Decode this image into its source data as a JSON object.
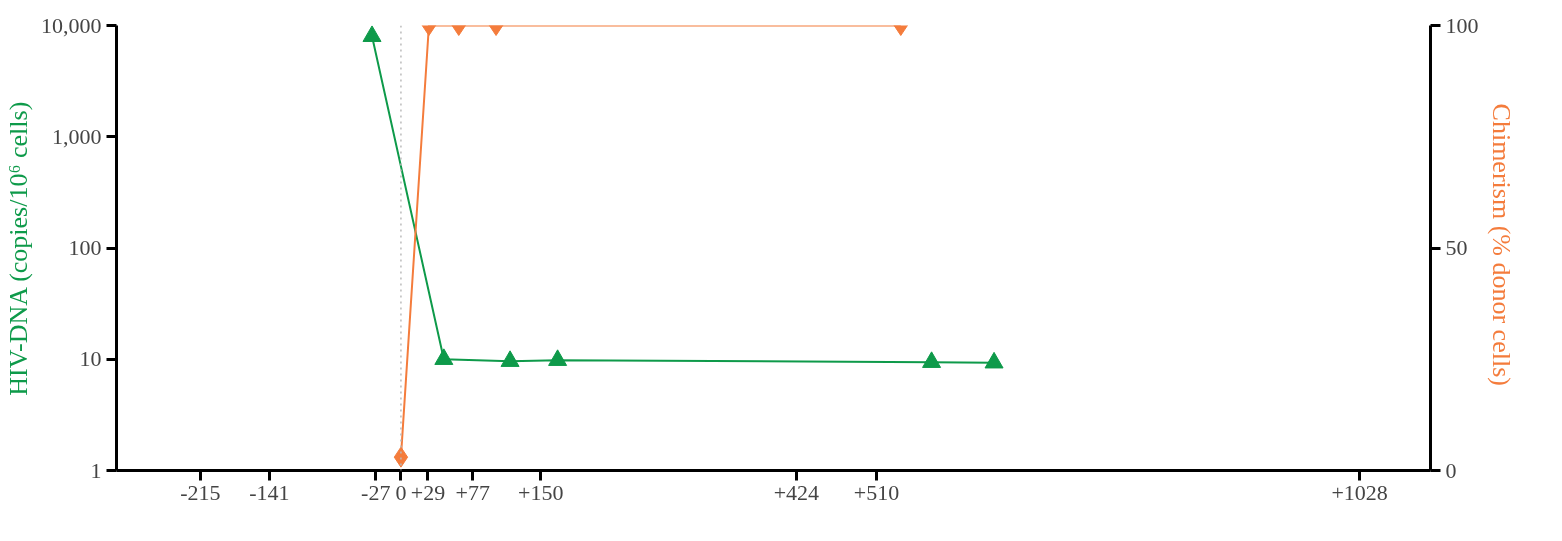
{
  "chart_data": {
    "type": "line",
    "ylabel": "HIV-DNA (copies/10⁶ cells)",
    "y2label": "Chimerism  (% donor cells)",
    "xlim": [
      -305,
      1104
    ],
    "xticks": [
      -215,
      -141,
      -27,
      0,
      {
        "value": 29,
        "label": "+29"
      },
      {
        "value": 77,
        "label": "+77"
      },
      {
        "value": 150,
        "label": "+150"
      },
      {
        "value": 424,
        "label": "+424"
      },
      {
        "value": 510,
        "label": "+510"
      },
      {
        "value": 1028,
        "label": "+1028"
      }
    ],
    "log": "y",
    "ylim": [
      1,
      10000
    ],
    "yticks": [
      {
        "value": 1,
        "label": "1"
      },
      {
        "value": 10,
        "label": "10"
      },
      {
        "value": 100,
        "label": "100"
      },
      {
        "value": 1000,
        "label": "1,000"
      },
      {
        "value": 10000,
        "label": "10,000"
      }
    ],
    "y2lim": [
      0,
      100
    ],
    "y2ticks": [
      0,
      50,
      100
    ],
    "grid": false,
    "ref_lines": [
      {
        "axis": "x",
        "value": 0,
        "label": null,
        "color": "#bbbbbb",
        "line_style": "dotted"
      }
    ],
    "series": [
      {
        "color": "#0e9a4a",
        "marker": "triangle",
        "x": [
          -31,
          46,
          117,
          168,
          569,
          636
        ],
        "values": [
          8000,
          10,
          9.6,
          9.8,
          9.4,
          9.3
        ]
      },
      {
        "color": "#f47c3c",
        "marker": "diamond",
        "axis": "y2",
        "x": [
          0,
          30,
          62,
          102,
          536
        ],
        "values": [
          3,
          100,
          100,
          100,
          100
        ]
      }
    ]
  }
}
